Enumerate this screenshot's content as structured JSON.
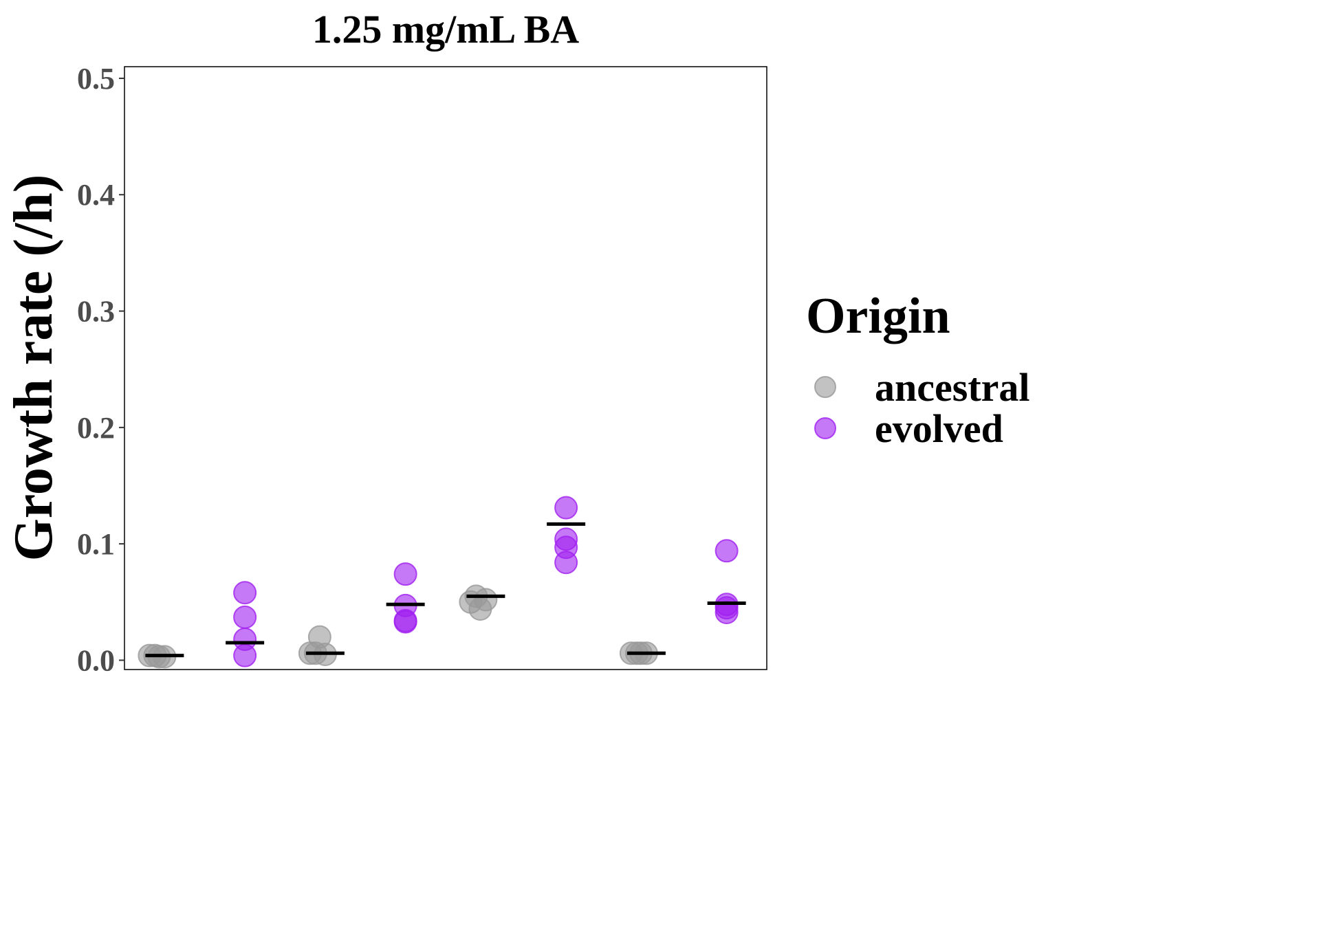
{
  "chart_data": {
    "type": "scatter",
    "title": "1.25 mg/mL BA",
    "xlabel": "",
    "ylabel": "Growth rate (/h)",
    "ylim": [
      -0.008,
      0.51
    ],
    "yticks": [
      "0.0",
      "0.1",
      "0.2",
      "0.3",
      "0.4",
      "0.5"
    ],
    "grid": false,
    "legend": {
      "title": "Origin",
      "placement": "right",
      "entries": [
        {
          "label": "ancestral",
          "color": "#999999"
        },
        {
          "label": "evolved",
          "color": "#a020f0"
        }
      ]
    },
    "groups": [
      {
        "origin": "ancestral",
        "mean": 0.004,
        "points": [
          0.004,
          0.003,
          0.004,
          0.003
        ]
      },
      {
        "origin": "evolved",
        "mean": 0.015,
        "points": [
          0.058,
          0.037,
          0.018,
          0.004
        ]
      },
      {
        "origin": "ancestral",
        "mean": 0.006,
        "points": [
          0.02,
          0.006,
          0.005,
          0.006
        ]
      },
      {
        "origin": "evolved",
        "mean": 0.048,
        "points": [
          0.074,
          0.047,
          0.034,
          0.033
        ]
      },
      {
        "origin": "ancestral",
        "mean": 0.055,
        "points": [
          0.055,
          0.052,
          0.05,
          0.044
        ]
      },
      {
        "origin": "evolved",
        "mean": 0.117,
        "points": [
          0.131,
          0.104,
          0.097,
          0.084
        ]
      },
      {
        "origin": "ancestral",
        "mean": 0.006,
        "points": [
          0.006,
          0.006,
          0.006,
          0.006
        ]
      },
      {
        "origin": "evolved",
        "mean": 0.049,
        "points": [
          0.094,
          0.048,
          0.045,
          0.041
        ]
      }
    ]
  }
}
